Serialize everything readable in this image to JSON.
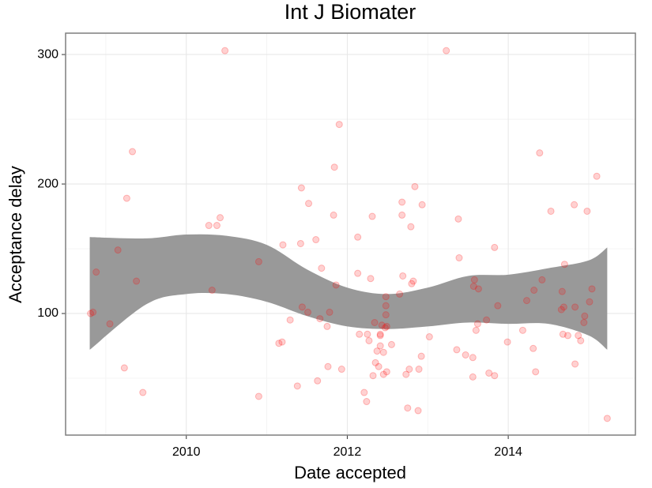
{
  "chart_data": {
    "type": "scatter",
    "title": "Int J Biomater",
    "xlabel": "Date accepted",
    "ylabel": "Acceptance delay",
    "xlim": [
      2008.5,
      2015.58
    ],
    "ylim": [
      6.1,
      316.5
    ],
    "xticks": [
      2010,
      2012,
      2014
    ],
    "yticks": [
      100,
      200,
      300
    ],
    "xminor": [
      2009,
      2011,
      2013,
      2015
    ],
    "yminor": [
      50,
      150,
      250
    ],
    "grid": true,
    "color": "#ff0000",
    "x": [
      2008.81,
      2008.84,
      2008.88,
      2009.05,
      2009.15,
      2009.23,
      2009.26,
      2009.33,
      2009.38,
      2009.46,
      2010.28,
      2010.32,
      2010.38,
      2010.42,
      2010.48,
      2010.9,
      2010.9,
      2011.15,
      2011.19,
      2011.2,
      2011.29,
      2011.38,
      2011.42,
      2011.43,
      2011.44,
      2011.51,
      2011.52,
      2011.61,
      2011.63,
      2011.66,
      2011.68,
      2011.75,
      2011.76,
      2011.78,
      2011.83,
      2011.84,
      2011.86,
      2011.9,
      2011.93,
      2012.13,
      2012.13,
      2012.15,
      2012.21,
      2012.24,
      2012.25,
      2012.27,
      2012.29,
      2012.31,
      2012.32,
      2012.34,
      2012.35,
      2012.37,
      2012.39,
      2012.41,
      2012.41,
      2012.41,
      2012.43,
      2012.45,
      2012.45,
      2012.47,
      2012.48,
      2012.48,
      2012.48,
      2012.49,
      2012.49,
      2012.55,
      2012.65,
      2012.68,
      2012.68,
      2012.69,
      2012.73,
      2012.75,
      2012.77,
      2012.79,
      2012.8,
      2012.82,
      2012.84,
      2012.88,
      2012.89,
      2012.92,
      2012.93,
      2013.02,
      2013.23,
      2013.36,
      2013.38,
      2013.39,
      2013.47,
      2013.56,
      2013.56,
      2013.57,
      2013.58,
      2013.6,
      2013.62,
      2013.63,
      2013.73,
      2013.76,
      2013.83,
      2013.83,
      2013.87,
      2013.99,
      2014.18,
      2014.23,
      2014.31,
      2014.32,
      2014.34,
      2014.39,
      2014.42,
      2014.53,
      2014.66,
      2014.67,
      2014.68,
      2014.69,
      2014.7,
      2014.74,
      2014.82,
      2014.83,
      2014.83,
      2014.87,
      2014.9,
      2014.94,
      2014.95,
      2014.98,
      2015.01,
      2015.04,
      2015.1,
      2015.23
    ],
    "values": [
      100,
      101,
      132,
      92,
      149,
      58,
      189,
      225,
      125,
      39,
      168,
      118,
      168,
      174,
      303,
      140,
      36,
      77,
      78,
      153,
      95,
      44,
      154,
      197,
      105,
      101,
      185,
      157,
      48,
      96,
      135,
      90,
      59,
      101,
      176,
      213,
      122,
      246,
      57,
      159,
      131,
      84,
      39,
      32,
      84,
      79,
      127,
      175,
      52,
      93,
      62,
      71,
      59,
      83,
      75,
      84,
      91,
      53,
      70,
      89,
      113,
      106,
      99,
      55,
      90,
      76,
      115,
      186,
      176,
      129,
      53,
      27,
      57,
      167,
      123,
      125,
      198,
      25,
      57,
      67,
      184,
      82,
      303,
      72,
      173,
      143,
      68,
      66,
      51,
      121,
      126,
      87,
      92,
      119,
      95,
      54,
      151,
      52,
      106,
      78,
      87,
      110,
      73,
      118,
      55,
      224,
      126,
      179,
      103,
      117,
      84,
      105,
      138,
      83,
      184,
      61,
      105,
      83,
      79,
      93,
      98,
      179,
      109,
      119,
      206,
      19
    ],
    "band": {
      "color": "#999999",
      "x": [
        2008.8,
        2009.5,
        2010,
        2010.5,
        2011,
        2011.5,
        2012,
        2012.5,
        2013,
        2013.5,
        2014,
        2014.5,
        2015,
        2015.23
      ],
      "upper": [
        159,
        158,
        161,
        160,
        153,
        134,
        120,
        115,
        120,
        129,
        130,
        135,
        141,
        151
      ],
      "lower": [
        72,
        107,
        115,
        115,
        109,
        98,
        90,
        88,
        90,
        93,
        92,
        92,
        83,
        72
      ]
    }
  }
}
